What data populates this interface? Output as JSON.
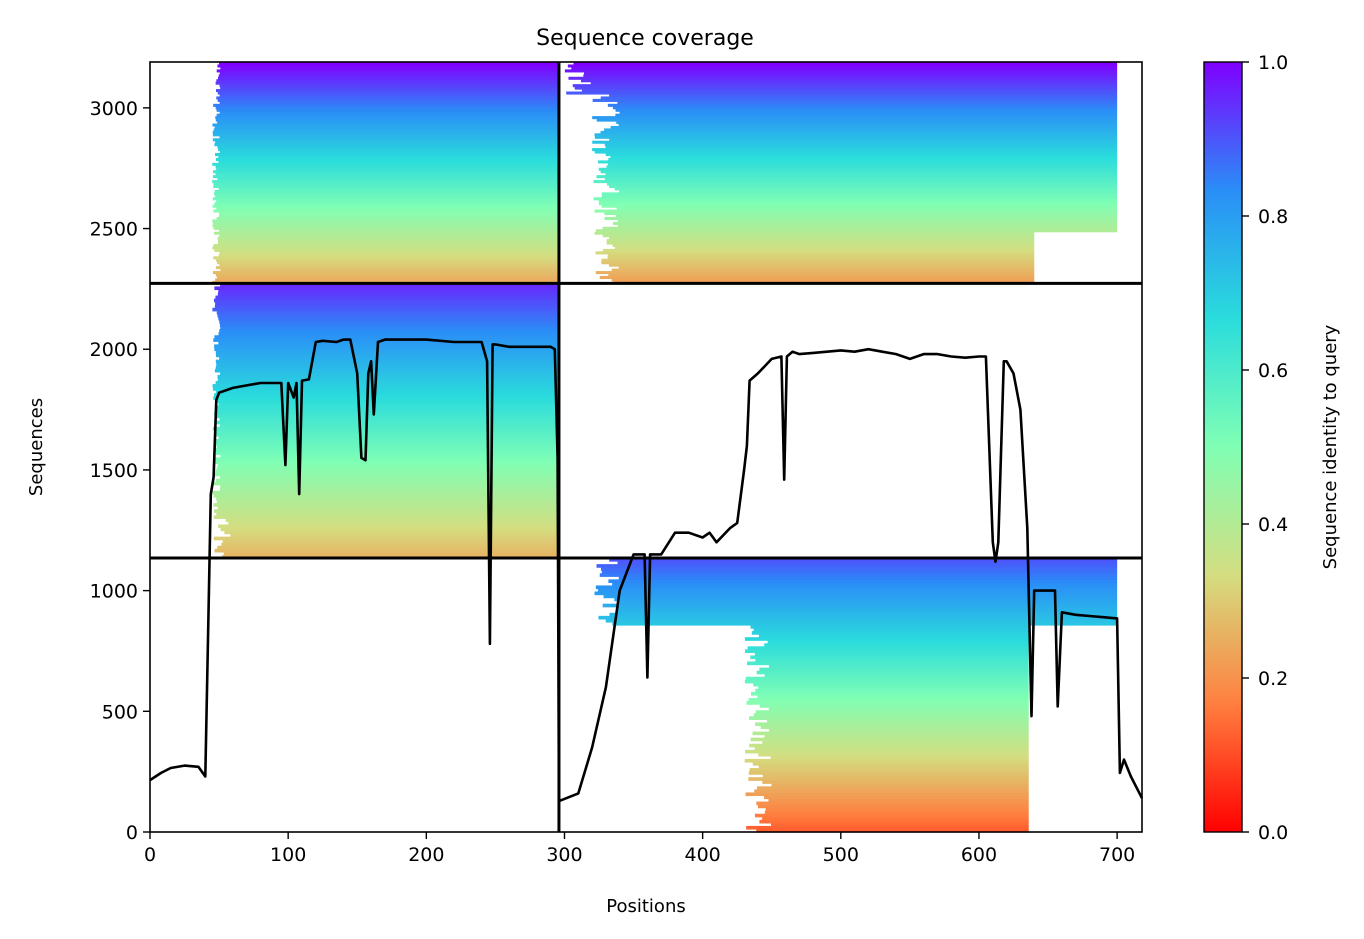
{
  "chart_data": {
    "type": "heatmap",
    "title": "Sequence coverage",
    "xlabel": "Positions",
    "ylabel": "Sequences",
    "xlim": [
      0,
      718
    ],
    "ylim": [
      0,
      3190
    ],
    "x_ticks": [
      0,
      100,
      200,
      300,
      400,
      500,
      600,
      700
    ],
    "y_ticks": [
      0,
      500,
      1000,
      1500,
      2000,
      2500,
      3000
    ],
    "colorbar": {
      "label": "Sequence identity to query",
      "range": [
        0,
        1
      ],
      "ticks": [
        "0.0",
        "0.2",
        "0.4",
        "0.6",
        "0.8",
        "1.0"
      ],
      "colormap": "rainbow_r",
      "colors": [
        "#ff0000",
        "#ff7f3f",
        "#d4dd80",
        "#80ffb4",
        "#2adcdc",
        "#2a8ef7",
        "#8000ff"
      ]
    },
    "divider_x": [
      296
    ],
    "divider_y": [
      1135,
      2273
    ],
    "blocks": [
      {
        "x": [
          0,
          296
        ],
        "y": [
          1135,
          2273
        ],
        "identity": [
          0.26,
          0.95
        ],
        "start_min": 45
      },
      {
        "x": [
          0,
          296
        ],
        "y": [
          2273,
          3190
        ],
        "identity": [
          0.24,
          1.0
        ],
        "start_min": 45
      },
      {
        "x": [
          296,
          718
        ],
        "y": [
          0,
          1135
        ],
        "identity": [
          0.12,
          0.9
        ],
        "start_min": 320
      },
      {
        "x": [
          296,
          718
        ],
        "y": [
          2273,
          3190
        ],
        "identity": [
          0.22,
          1.0
        ],
        "start_min": 300
      }
    ],
    "coverage_line": {
      "x": [
        0,
        8,
        15,
        25,
        35,
        40,
        42,
        44,
        46,
        48,
        50,
        60,
        70,
        80,
        90,
        95,
        98,
        100,
        104,
        106,
        108,
        110,
        115,
        120,
        125,
        135,
        140,
        145,
        150,
        153,
        156,
        158,
        160,
        162,
        165,
        170,
        180,
        200,
        220,
        240,
        244,
        246,
        248,
        250,
        260,
        270,
        280,
        290,
        293,
        295,
        296,
        297,
        310,
        320,
        330,
        340,
        350,
        358,
        360,
        362,
        370,
        380,
        390,
        400,
        405,
        410,
        420,
        425,
        430,
        432,
        434,
        440,
        450,
        457,
        459,
        461,
        465,
        470,
        480,
        490,
        500,
        510,
        520,
        530,
        540,
        550,
        560,
        570,
        580,
        590,
        600,
        605,
        610,
        612,
        614,
        618,
        620,
        625,
        630,
        635,
        638,
        640,
        645,
        655,
        657,
        660,
        670,
        680,
        690,
        700,
        702,
        705,
        710,
        718
      ],
      "y": [
        215,
        245,
        265,
        275,
        270,
        230,
        800,
        1400,
        1470,
        1790,
        1820,
        1840,
        1850,
        1860,
        1860,
        1860,
        1520,
        1860,
        1800,
        1860,
        1400,
        1870,
        1875,
        2030,
        2035,
        2030,
        2040,
        2040,
        1900,
        1550,
        1540,
        1900,
        1950,
        1730,
        2030,
        2040,
        2040,
        2040,
        2030,
        2030,
        1950,
        780,
        2020,
        2020,
        2010,
        2010,
        2010,
        2010,
        2000,
        1550,
        130,
        130,
        160,
        350,
        600,
        1000,
        1150,
        1150,
        640,
        1150,
        1150,
        1240,
        1240,
        1220,
        1240,
        1200,
        1260,
        1280,
        1500,
        1600,
        1870,
        1900,
        1960,
        1970,
        1460,
        1970,
        1990,
        1980,
        1985,
        1990,
        1995,
        1990,
        2000,
        1990,
        1980,
        1960,
        1980,
        1980,
        1970,
        1965,
        1970,
        1970,
        1200,
        1120,
        1200,
        1950,
        1950,
        1900,
        1750,
        1260,
        480,
        1000,
        1000,
        1000,
        520,
        910,
        900,
        895,
        890,
        885,
        245,
        300,
        230,
        140
      ]
    }
  }
}
